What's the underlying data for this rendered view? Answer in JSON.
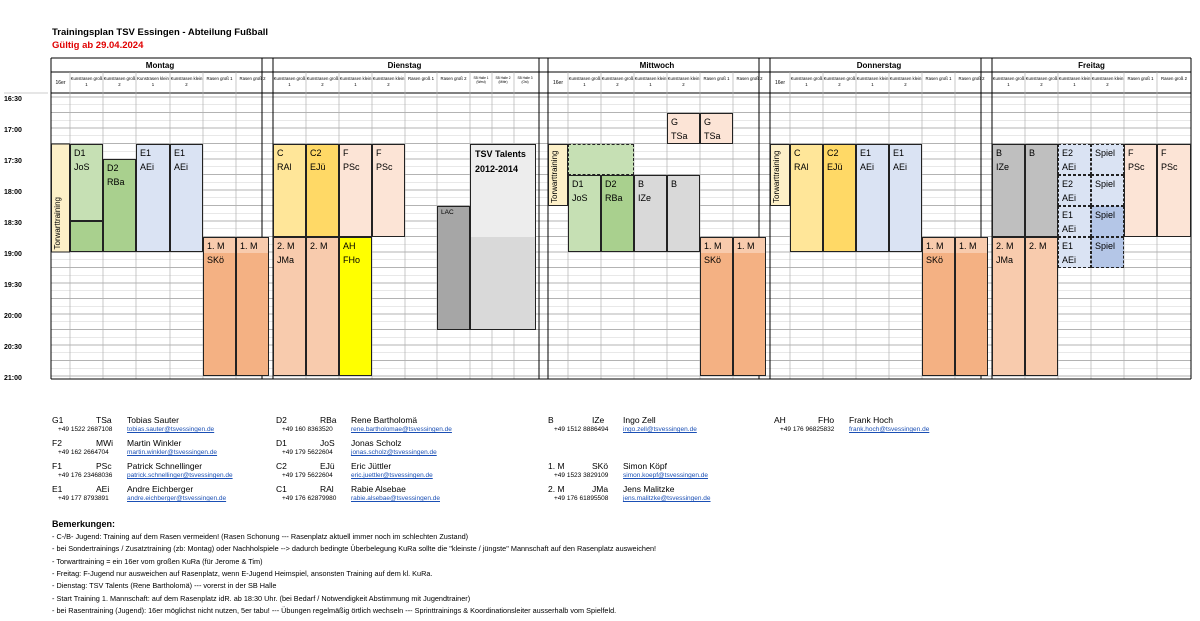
{
  "header": {
    "title": "Trainingsplan TSV Essingen - Abteilung Fußball",
    "valid_from": "Gültig ab 29.04.2024"
  },
  "days": [
    {
      "name": "Montag",
      "columns": [
        "16er",
        "Kunstrasen groß 1",
        "Kunstrasen groß 2",
        "Kunstrasen klein 1",
        "Kunstrasen klein 2",
        "Rasen groß 1",
        "Rasen groß 2"
      ]
    },
    {
      "name": "Dienstag",
      "columns": [
        "Kunstrasen groß 1",
        "Kunstrasen groß 2",
        "Kunstrasen klein 1",
        "Kunstrasen klein 2",
        "Rasen groß 1",
        "Rasen groß 2",
        "SB Halle 1 (West)",
        "SB Halle 2 (Mitte)",
        "SB Halle 3 (Ost)"
      ]
    },
    {
      "name": "Mittwoch",
      "columns": [
        "16er",
        "Kunstrasen groß 1",
        "Kunstrasen groß 2",
        "Kunstrasen klein 1",
        "Kunstrasen klein 2",
        "Rasen groß 1",
        "Rasen groß 2"
      ]
    },
    {
      "name": "Donnerstag",
      "columns": [
        "16er",
        "Kunstrasen groß 1",
        "Kunstrasen groß 2",
        "Kunstrasen klein 1",
        "Kunstrasen klein 2",
        "Rasen groß 1",
        "Rasen groß 2"
      ]
    },
    {
      "name": "Freitag",
      "columns": [
        "Kunstrasen groß 1",
        "Kunstrasen groß 2",
        "Kunstrasen klein 1",
        "Kunstrasen klein 2",
        "Rasen groß 1",
        "Rasen groß 2"
      ]
    }
  ],
  "times": [
    "16:30",
    "17:00",
    "17:30",
    "18:00",
    "18:30",
    "19:00",
    "19:30",
    "20:00",
    "20:30",
    "21:00"
  ],
  "blocks": [
    {
      "col": 0,
      "start": "17:15",
      "end": "19:00",
      "l1": "Torwarttraining",
      "l2": "",
      "color": "#fdf0c8",
      "vertical": true
    },
    {
      "col": 1,
      "start": "17:15",
      "end": "18:30",
      "l1": "D1",
      "l2": "JoS",
      "color": "#c6e0b4"
    },
    {
      "col": 1,
      "start": "18:30",
      "end": "19:00",
      "l1": "",
      "l2": "",
      "color": "#a9d08e"
    },
    {
      "col": 2,
      "start": "17:30",
      "end": "19:00",
      "l1": "D2",
      "l2": "RBa",
      "color": "#a9d08e"
    },
    {
      "col": 3,
      "start": "17:15",
      "end": "19:00",
      "l1": "E1",
      "l2": "AEi",
      "color": "#dae3f3"
    },
    {
      "col": 4,
      "start": "17:15",
      "end": "19:00",
      "l1": "E1",
      "l2": "AEi",
      "color": "#dae3f3"
    },
    {
      "col": 5,
      "start": "18:45",
      "end": "21:00",
      "l1": "1. M",
      "l2": "SKö",
      "color": "#f8cbad",
      "split": "19:00",
      "color2": "#f4b183"
    },
    {
      "col": 6,
      "start": "18:45",
      "end": "21:00",
      "l1": "1. M",
      "l2": "",
      "color": "#f8cbad",
      "split": "19:00",
      "color2": "#f4b183"
    },
    {
      "col": 7,
      "start": "17:15",
      "end": "18:45",
      "l1": "C",
      "l2": "RAl",
      "color": "#ffe699"
    },
    {
      "col": 7,
      "start": "18:45",
      "end": "21:00",
      "l1": "2. M",
      "l2": "JMa",
      "color": "#f8cbad",
      "split": "19:00",
      "color2": "#f8cbad"
    },
    {
      "col": 8,
      "start": "17:15",
      "end": "18:45",
      "l1": "C2",
      "l2": "EJü",
      "color": "#ffd966"
    },
    {
      "col": 8,
      "start": "18:45",
      "end": "21:00",
      "l1": "2. M",
      "l2": "",
      "color": "#f8cbad"
    },
    {
      "col": 9,
      "start": "17:15",
      "end": "18:45",
      "l1": "F",
      "l2": "PSc",
      "color": "#fce4d6"
    },
    {
      "col": 9,
      "start": "18:45",
      "end": "21:00",
      "l1": "AH",
      "l2": "FHo",
      "color": "#ffff00"
    },
    {
      "col": 10,
      "start": "17:15",
      "end": "18:45",
      "l1": "F",
      "l2": "PSc",
      "color": "#fce4d6"
    },
    {
      "col": 12,
      "start": "18:15",
      "end": "20:15",
      "l1": "LAC",
      "l2": "",
      "color": "#a6a6a6",
      "small": true
    },
    {
      "col": 13,
      "start": "17:15",
      "end": "20:15",
      "l1": "TSV Talents",
      "l2": "2012-2014",
      "color": "#ededed",
      "span": 3,
      "bold": true,
      "split": "18:45",
      "color2": "#d9d9d9"
    },
    {
      "col": 16,
      "start": "17:15",
      "end": "18:15",
      "l1": "Torwarttraining",
      "l2": "",
      "color": "#fdf0c8",
      "vertical": true
    },
    {
      "col": 17,
      "start": "17:15",
      "end": "17:45",
      "l1": "",
      "l2": "",
      "color": "#c6e0b4",
      "dashed": true,
      "span": 2
    },
    {
      "col": 17,
      "start": "17:45",
      "end": "19:00",
      "l1": "D1",
      "l2": "JoS",
      "color": "#c6e0b4"
    },
    {
      "col": 18,
      "start": "17:45",
      "end": "19:00",
      "l1": "D2",
      "l2": "RBa",
      "color": "#a9d08e"
    },
    {
      "col": 19,
      "start": "17:45",
      "end": "19:00",
      "l1": "B",
      "l2": "IZe",
      "color": "#d9d9d9"
    },
    {
      "col": 20,
      "start": "17:45",
      "end": "19:00",
      "l1": "B",
      "l2": "",
      "color": "#d9d9d9"
    },
    {
      "col": 20,
      "start": "16:45",
      "end": "17:15",
      "l1": "G",
      "l2": "TSa",
      "color": "#fce4d6"
    },
    {
      "col": 21,
      "start": "16:45",
      "end": "17:15",
      "l1": "G",
      "l2": "TSa",
      "color": "#fce4d6"
    },
    {
      "col": 21,
      "start": "18:45",
      "end": "21:00",
      "l1": "1. M",
      "l2": "SKö",
      "color": "#f8cbad",
      "split": "19:00",
      "color2": "#f4b183"
    },
    {
      "col": 22,
      "start": "18:45",
      "end": "21:00",
      "l1": "1. M",
      "l2": "",
      "color": "#f8cbad",
      "split": "19:00",
      "color2": "#f4b183"
    },
    {
      "col": 23,
      "start": "17:15",
      "end": "18:15",
      "l1": "Torwarttraining",
      "l2": "",
      "color": "#fdf0c8",
      "vertical": true
    },
    {
      "col": 24,
      "start": "17:15",
      "end": "19:00",
      "l1": "C",
      "l2": "RAl",
      "color": "#ffe699"
    },
    {
      "col": 25,
      "start": "17:15",
      "end": "19:00",
      "l1": "C2",
      "l2": "EJü",
      "color": "#ffd966"
    },
    {
      "col": 26,
      "start": "17:15",
      "end": "19:00",
      "l1": "E1",
      "l2": "AEi",
      "color": "#dae3f3"
    },
    {
      "col": 27,
      "start": "17:15",
      "end": "19:00",
      "l1": "E1",
      "l2": "AEi",
      "color": "#dae3f3"
    },
    {
      "col": 28,
      "start": "18:45",
      "end": "21:00",
      "l1": "1. M",
      "l2": "SKö",
      "color": "#f8cbad",
      "split": "19:00",
      "color2": "#f4b183"
    },
    {
      "col": 29,
      "start": "18:45",
      "end": "21:00",
      "l1": "1. M",
      "l2": "",
      "color": "#f8cbad",
      "split": "19:00",
      "color2": "#f4b183"
    },
    {
      "col": 30,
      "start": "17:15",
      "end": "18:45",
      "l1": "B",
      "l2": "IZe",
      "color": "#bfbfbf"
    },
    {
      "col": 30,
      "start": "18:45",
      "end": "21:00",
      "l1": "2. M",
      "l2": "JMa",
      "color": "#f8cbad"
    },
    {
      "col": 31,
      "start": "17:15",
      "end": "18:45",
      "l1": "B",
      "l2": "",
      "color": "#bfbfbf"
    },
    {
      "col": 31,
      "start": "18:45",
      "end": "21:00",
      "l1": "2. M",
      "l2": "",
      "color": "#f8cbad"
    },
    {
      "col": 32,
      "start": "17:15",
      "end": "17:45",
      "l1": "E2",
      "l2": "AEi",
      "color": "#dae3f3",
      "dashed": true
    },
    {
      "col": 32,
      "start": "17:45",
      "end": "18:15",
      "l1": "E2",
      "l2": "AEi",
      "color": "#dae3f3",
      "dashed": true
    },
    {
      "col": 32,
      "start": "18:15",
      "end": "18:45",
      "l1": "E1",
      "l2": "AEi",
      "color": "#dae3f3",
      "dashed": true
    },
    {
      "col": 32,
      "start": "18:45",
      "end": "19:15",
      "l1": "E1",
      "l2": "AEi",
      "color": "#dae3f3",
      "dashed": true
    },
    {
      "col": 33,
      "start": "17:15",
      "end": "17:45",
      "l1": "Spiel",
      "l2": "",
      "color": "#dae3f3",
      "dashed": true
    },
    {
      "col": 33,
      "start": "17:45",
      "end": "18:15",
      "l1": "Spiel",
      "l2": "",
      "color": "#dae3f3",
      "dashed": true
    },
    {
      "col": 33,
      "start": "18:15",
      "end": "18:45",
      "l1": "Spiel",
      "l2": "",
      "color": "#b4c6e7",
      "dashed": true
    },
    {
      "col": 33,
      "start": "18:45",
      "end": "19:15",
      "l1": "Spiel",
      "l2": "",
      "color": "#b4c6e7",
      "dashed": true
    },
    {
      "col": 34,
      "start": "17:15",
      "end": "18:45",
      "l1": "F",
      "l2": "PSc",
      "color": "#fce4d6"
    },
    {
      "col": 35,
      "start": "17:15",
      "end": "18:45",
      "l1": "F",
      "l2": "PSc",
      "color": "#fce4d6"
    }
  ],
  "contacts": [
    {
      "code": "G1",
      "abbr": "TSa",
      "name": "Tobias Sauter",
      "phone": "+49 1522 2687108",
      "email": "tobias.sauter@tsvessingen.de"
    },
    {
      "code": "F2",
      "abbr": "MWi",
      "name": "Martin Winkler",
      "phone": "+49 162 2664704",
      "email": "martin.winkler@tsvessingen.de"
    },
    {
      "code": "F1",
      "abbr": "PSc",
      "name": "Patrick Schnellinger",
      "phone": "+49 176 23468036",
      "email": "patrick.schnellinger@tsvessingen.de"
    },
    {
      "code": "E1",
      "abbr": "AEi",
      "name": "Andre Eichberger",
      "phone": "+49 177 8793891",
      "email": "andre.eichberger@tsvessingen.de"
    },
    {
      "code": "D2",
      "abbr": "RBa",
      "name": "Rene Bartholomä",
      "phone": "+49 160 8363520",
      "email": "rene.bartholomae@tsvessingen.de"
    },
    {
      "code": "D1",
      "abbr": "JoS",
      "name": "Jonas Scholz",
      "phone": "+49 179 5622604",
      "email": "jonas.scholz@tsvessingen.de"
    },
    {
      "code": "C2",
      "abbr": "EJü",
      "name": "Eric Jüttler",
      "phone": "+49 179 5622604",
      "email": "eric.juettler@tsvessingen.de"
    },
    {
      "code": "C1",
      "abbr": "RAl",
      "name": "Rabie Alsebae",
      "phone": "+49 176 62879980",
      "email": "rabie.alsebae@tsvessingen.de"
    },
    {
      "code": "B",
      "abbr": "IZe",
      "name": "Ingo Zell",
      "phone": "+49 1512 8886494",
      "email": "ingo.zell@tsvessingen.de"
    },
    {
      "code": "1. M",
      "abbr": "SKö",
      "name": "Simon Köpf",
      "phone": "+49 1523 3829109",
      "email": "simon.koepf@tsvessingen.de"
    },
    {
      "code": "2. M",
      "abbr": "JMa",
      "name": "Jens Malitzke",
      "phone": "+49 176 61895508",
      "email": "jens.malitzke@tsvessingen.de"
    },
    {
      "code": "AH",
      "abbr": "FHo",
      "name": "Frank Hoch",
      "phone": "+49 176 96825832",
      "email": "frank.hoch@tsvessingen.de"
    }
  ],
  "remarks": {
    "title": "Bemerkungen:",
    "items": [
      "- C-/B- Jugend: Training auf dem Rasen vermeiden! (Rasen Schonung --- Rasenplatz aktuell immer noch im schlechten Zustand)",
      "- bei Sondertrainings / Zusatztraining (zb: Montag) oder Nachholspiele --> dadurch bedingte Überbelegung KuRa sollte die \"kleinste / jüngste\" Mannschaft auf den Rasenplatz ausweichen!",
      "- Torwarttraining = ein 16er vom großen KuRa (für Jerome & Tim)",
      "- Freitag: F-Jugend nur ausweichen auf Rasenplatz, wenn E-Jugend Heimspiel, ansonsten Training auf dem kl. KuRa.",
      "- Dienstag: TSV Talents (Rene Bartholomä)  ---  vorerst in der SB Halle",
      "- Start Training 1. Mannschaft: auf dem Rasenplatz idR. ab 18:30 Uhr. (bei Bedarf / Notwendigkeit Abstimmung mit Jugendtrainer)",
      "- bei Rasentraining (Jugend):  16er möglichst nicht nutzen, 5er tabu!  --- Übungen regelmäßig örtlich wechseln  ---  Sprinttrainings & Koordinationsleiter ausserhalb vom Spielfeld."
    ]
  }
}
